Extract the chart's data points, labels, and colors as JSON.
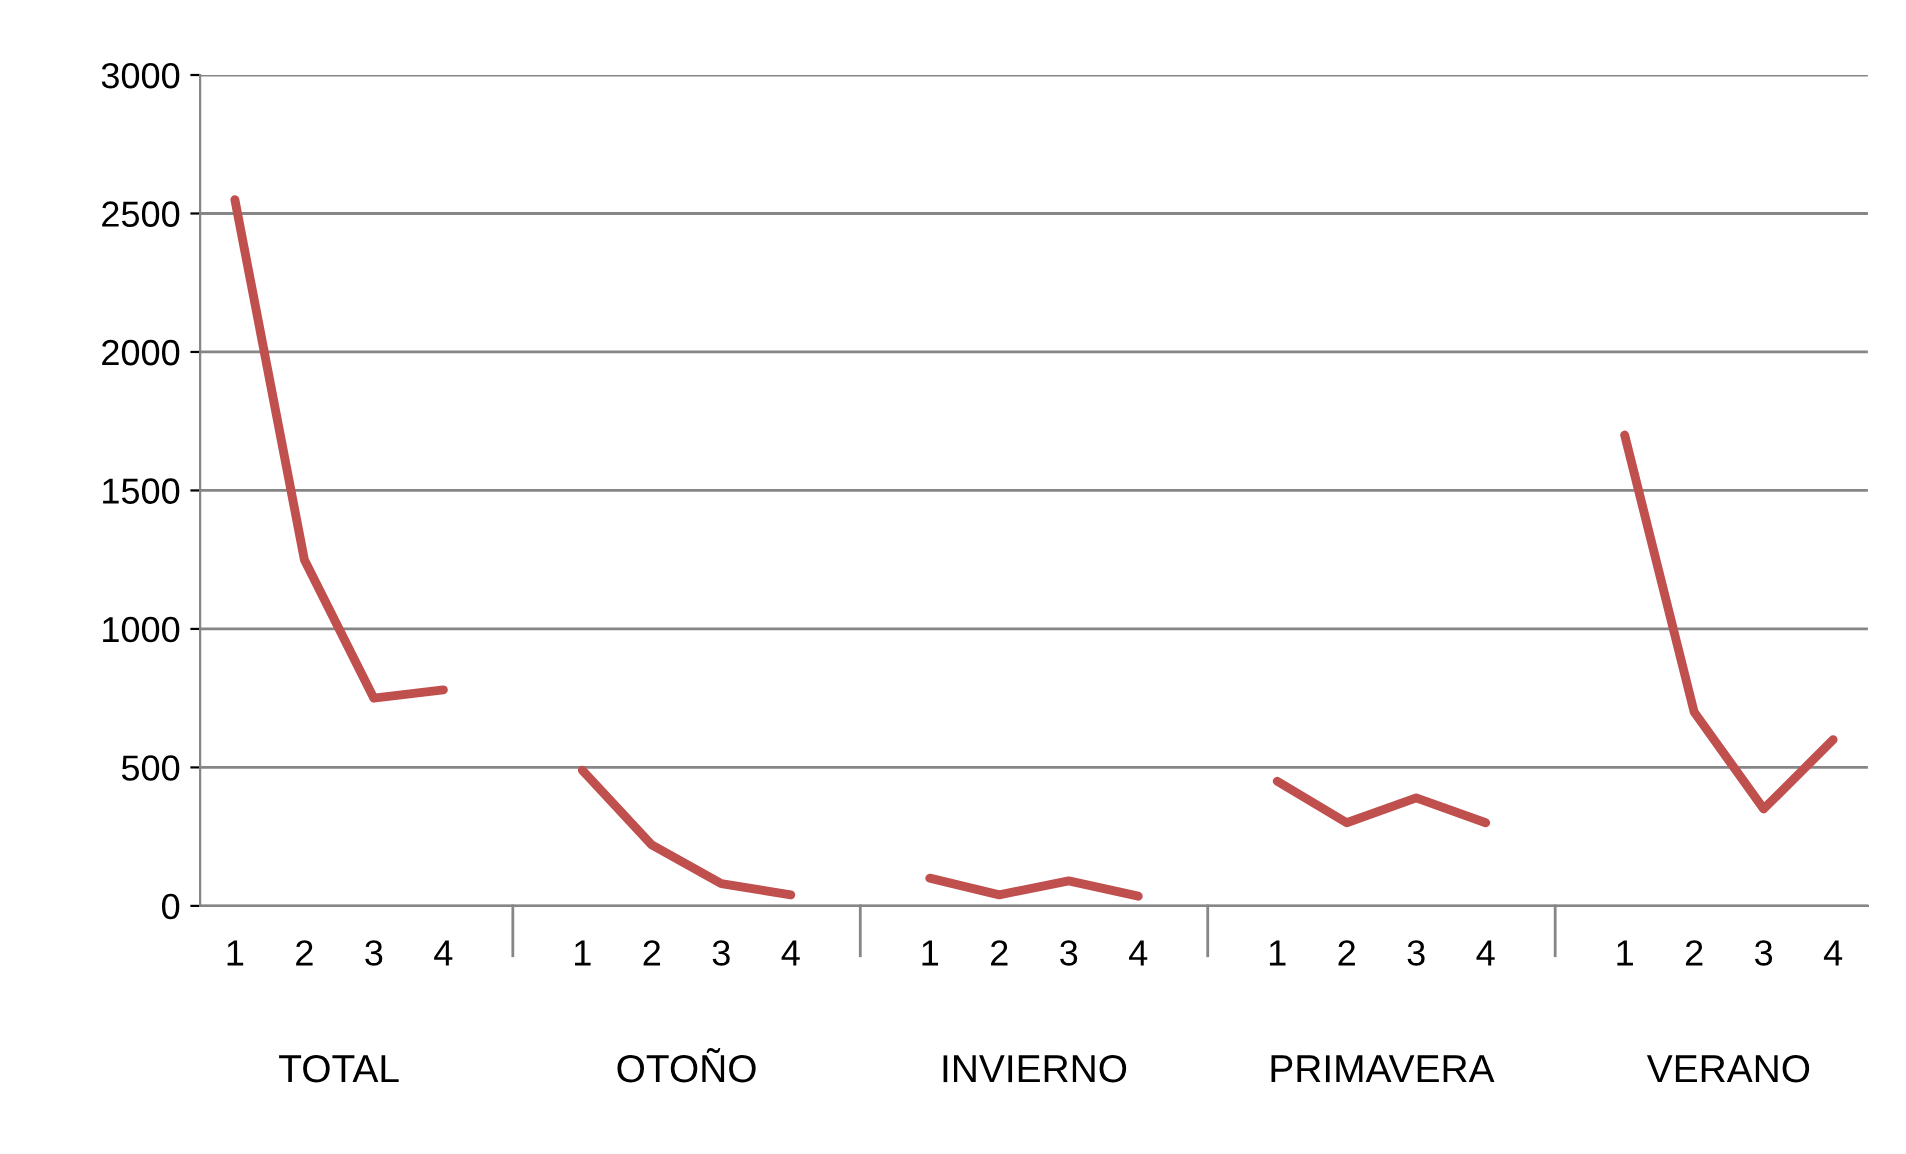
{
  "chart_data": {
    "type": "line",
    "categories": [
      "1",
      "2",
      "3",
      "4",
      null,
      "1",
      "2",
      "3",
      "4",
      null,
      "1",
      "2",
      "3",
      "4",
      null,
      "1",
      "2",
      "3",
      "4",
      null,
      "1",
      "2",
      "3",
      "4"
    ],
    "series": [
      {
        "color": "#c0504d",
        "values": [
          2550,
          1250,
          750,
          780,
          null,
          490,
          220,
          80,
          40,
          null,
          100,
          40,
          90,
          35,
          null,
          450,
          300,
          390,
          300,
          null,
          1700,
          700,
          350,
          600
        ]
      }
    ],
    "annotations": [
      "TOTAL",
      "OTOÑO",
      "INVIERNO",
      "PRIMAVERA",
      "VERANO"
    ],
    "ylim": [
      0,
      3000
    ],
    "yticks": [
      0,
      500,
      1000,
      1500,
      2000,
      2500,
      3000
    ],
    "grid": "y",
    "marker": "none",
    "line_style": "solid"
  }
}
